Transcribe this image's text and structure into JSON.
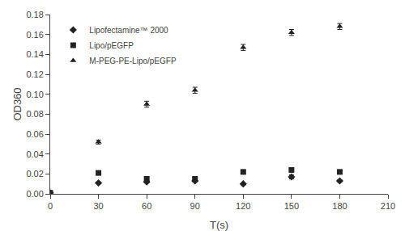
{
  "chart_data": {
    "type": "scatter",
    "x": [
      0,
      30,
      60,
      90,
      120,
      150,
      180
    ],
    "series": [
      {
        "name": "Lipofectamine™ 2000",
        "color": "#222222",
        "marker": "diamond",
        "values": [
          0.001,
          0.011,
          0.012,
          0.013,
          0.01,
          0.017,
          0.013
        ],
        "errors": [
          0.001,
          0.001,
          0.001,
          0.001,
          0.001,
          0.002,
          0.001
        ]
      },
      {
        "name": "Lipo/pEGFP",
        "color": "#222222",
        "marker": "square",
        "values": [
          0.001,
          0.021,
          0.015,
          0.015,
          0.022,
          0.024,
          0.022
        ],
        "errors": [
          0.001,
          0.002,
          0.002,
          0.002,
          0.002,
          0.002,
          0.002
        ]
      },
      {
        "name": "M-PEG-PE-Lipo/pEGFP",
        "color": "#222222",
        "marker": "triangle-up",
        "values": [
          0.001,
          0.052,
          0.09,
          0.104,
          0.147,
          0.162,
          0.168
        ],
        "errors": [
          0.001,
          0.002,
          0.003,
          0.003,
          0.003,
          0.003,
          0.003
        ]
      }
    ],
    "xlabel": "T(s)",
    "ylabel": "OD360",
    "xlim": [
      0,
      210
    ],
    "ylim": [
      0,
      0.18
    ],
    "xticks": [
      0,
      30,
      60,
      90,
      120,
      150,
      180,
      210
    ],
    "yticks": [
      {
        "value": 0,
        "label": "0.00"
      },
      0.02,
      0.04,
      0.06,
      0.08,
      {
        "value": 0.1,
        "label": "0.10"
      },
      0.12,
      0.14,
      0.16,
      0.18
    ],
    "grid": false,
    "legend": "upper left"
  }
}
